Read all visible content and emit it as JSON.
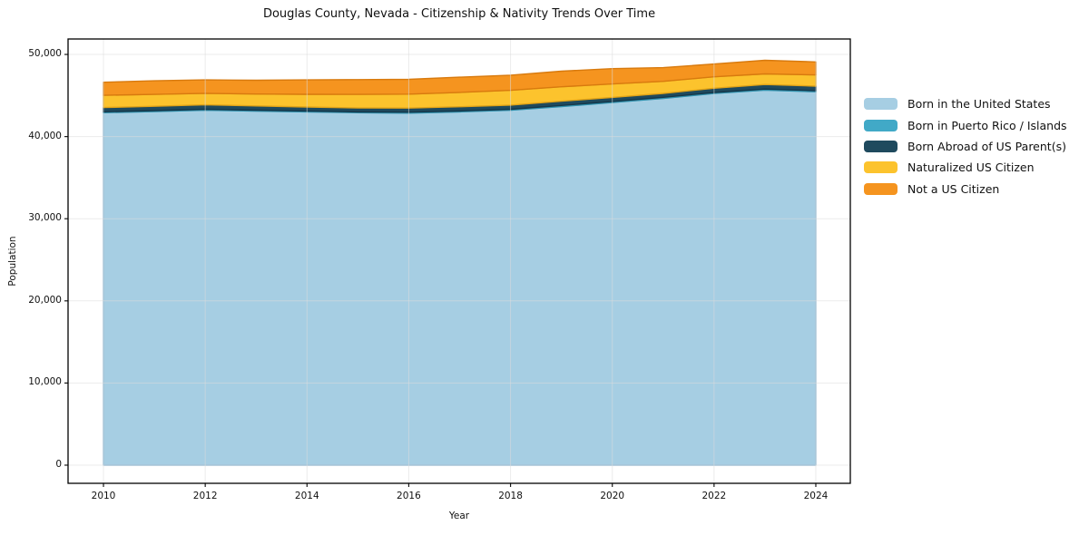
{
  "title": "Douglas County, Nevada - Citizenship & Nativity Trends Over Time",
  "chart_data": {
    "type": "area",
    "stacked": true,
    "title": "Douglas County, Nevada - Citizenship & Nativity Trends Over Time",
    "xlabel": "Year",
    "ylabel": "Population",
    "x": [
      2010,
      2011,
      2012,
      2013,
      2014,
      2015,
      2016,
      2017,
      2018,
      2019,
      2020,
      2021,
      2022,
      2023,
      2024
    ],
    "series": [
      {
        "name": "Born in the United States",
        "color": "#a6cee3",
        "edge": "#86b6d4",
        "values": [
          42900,
          43050,
          43200,
          43100,
          43000,
          42900,
          42850,
          43000,
          43200,
          43650,
          44150,
          44650,
          45250,
          45650,
          45450
        ]
      },
      {
        "name": "Born in Puerto Rico / Islands",
        "color": "#41a9c7",
        "edge": "#2f91ad",
        "values": [
          120,
          110,
          130,
          120,
          110,
          100,
          120,
          110,
          130,
          140,
          120,
          130,
          120,
          140,
          140
        ]
      },
      {
        "name": "Born Abroad of US Parent(s)",
        "color": "#1f4a5e",
        "edge": "#15374a",
        "values": [
          520,
          530,
          540,
          510,
          490,
          480,
          500,
          520,
          500,
          520,
          500,
          480,
          520,
          550,
          550
        ]
      },
      {
        "name": "Naturalized US Citizen",
        "color": "#fcc32d",
        "edge": "#e2a417",
        "values": [
          1480,
          1450,
          1400,
          1450,
          1550,
          1650,
          1700,
          1750,
          1800,
          1750,
          1640,
          1470,
          1390,
          1290,
          1370
        ]
      },
      {
        "name": "Not a US Citizen",
        "color": "#f5941f",
        "edge": "#d87a0e",
        "values": [
          1600,
          1650,
          1630,
          1680,
          1750,
          1800,
          1800,
          1850,
          1850,
          1900,
          1860,
          1660,
          1550,
          1660,
          1580
        ]
      }
    ],
    "xticks": [
      2010,
      2012,
      2014,
      2016,
      2018,
      2020,
      2022,
      2024
    ],
    "xtick_labels": [
      "2010",
      "2012",
      "2014",
      "2016",
      "2018",
      "2020",
      "2022",
      "2024"
    ],
    "yticks": [
      0,
      10000,
      20000,
      30000,
      40000,
      50000
    ],
    "ytick_labels": [
      "0",
      "10,000",
      "20,000",
      "30,000",
      "40,000",
      "50,000"
    ],
    "xlim": [
      2009.304,
      2024.678
    ],
    "ylim": [
      -2210,
      51880
    ],
    "grid": true,
    "legend_position": "right-outside"
  }
}
